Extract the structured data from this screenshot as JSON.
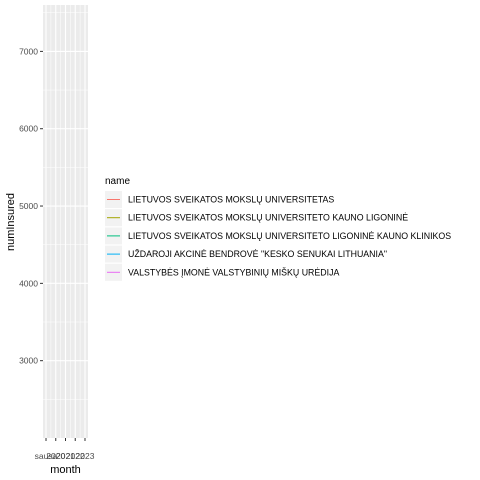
{
  "chart_data": {
    "type": "line",
    "title": "",
    "xlabel": "month",
    "ylabel": "numInsured",
    "ylim": [
      2000,
      7600
    ],
    "y_ticks": [
      3000,
      4000,
      5000,
      6000,
      7000
    ],
    "x_tick_labels": [
      "sausa",
      "2020",
      "2021",
      "2022",
      "2023"
    ],
    "grid": true,
    "legend_position": "right",
    "legend_title": "name",
    "series": [
      {
        "name": "LIETUVOS SVEIKATOS MOKSLŲ UNIVERSITETAS",
        "color": "#F8766D",
        "values": []
      },
      {
        "name": "LIETUVOS SVEIKATOS MOKSLŲ UNIVERSITETO KAUNO LIGONINĖ",
        "color": "#A3A500",
        "values": []
      },
      {
        "name": "LIETUVOS SVEIKATOS MOKSLŲ UNIVERSITETO LIGONINĖ KAUNO KLINIKOS",
        "color": "#00BF7D",
        "values": []
      },
      {
        "name": "UŽDAROJI AKCINĖ BENDROVĖ \"KESKO SENUKAI LITHUANIA\"",
        "color": "#00B0F6",
        "values": []
      },
      {
        "name": "VALSTYBĖS ĮMONĖ VALSTYBINIŲ MIŠKŲ URĖDIJA",
        "color": "#E76BF3",
        "values": []
      }
    ]
  }
}
